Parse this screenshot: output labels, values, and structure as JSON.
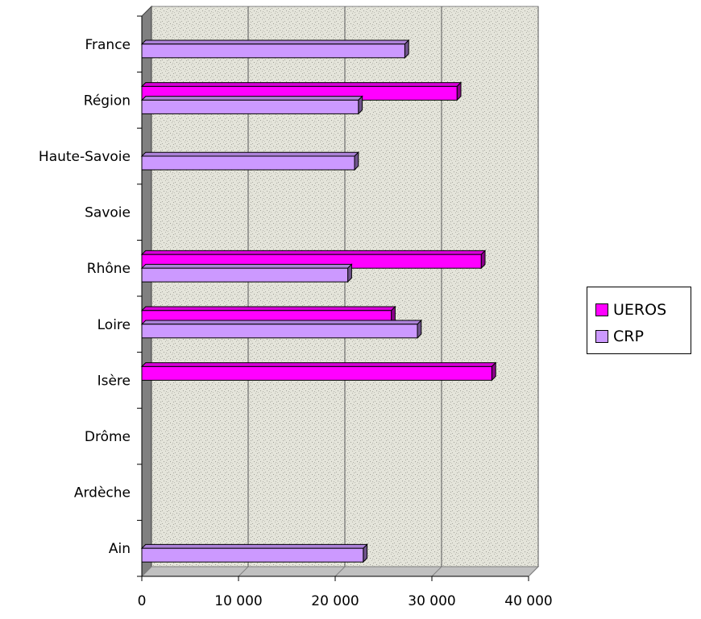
{
  "chart_data": {
    "type": "bar",
    "orientation": "horizontal",
    "categories": [
      "Ain",
      "Ardèche",
      "Drôme",
      "Isère",
      "Loire",
      "Rhône",
      "Savoie",
      "Haute-Savoie",
      "Région",
      "France"
    ],
    "series": [
      {
        "name": "UEROS",
        "color": "#ff00ff",
        "values": [
          null,
          null,
          null,
          36200,
          25800,
          35100,
          null,
          null,
          32600,
          null
        ]
      },
      {
        "name": "CRP",
        "color": "#cc99ff",
        "values": [
          22900,
          null,
          null,
          null,
          28500,
          21300,
          null,
          22000,
          22400,
          27200
        ]
      }
    ],
    "xlim": [
      0,
      40000
    ],
    "xticks": [
      0,
      10000,
      20000,
      30000,
      40000
    ],
    "xtick_labels": [
      "0",
      "10 000",
      "20 000",
      "30 000",
      "40 000"
    ],
    "title": "",
    "xlabel": "",
    "ylabel": "",
    "grid": true,
    "legend_position": "right",
    "background": "textured-paper",
    "colors": {
      "plot_fill": "#dcdcd2",
      "floor": "#808080",
      "gridline": "#555555"
    }
  }
}
